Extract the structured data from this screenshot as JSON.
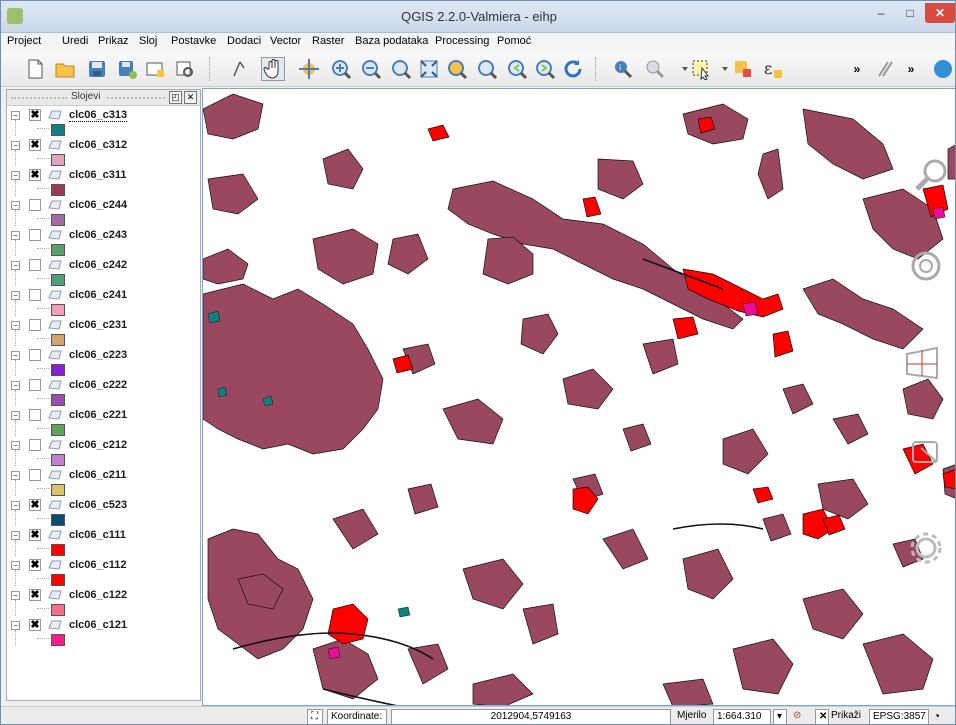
{
  "window": {
    "title": "QGIS 2.2.0-Valmiera - eihp",
    "minimize": "–",
    "maximize": "□",
    "close": "✕"
  },
  "menu": [
    "Project",
    "Uredi",
    "Prikaz",
    "Sloj",
    "Postavke",
    "Dodaci",
    "Vector",
    "Raster",
    "Baza podataka",
    "Processing",
    "Pomoć"
  ],
  "toolbar": {
    "tools": [
      "new-project",
      "open-project",
      "save-project",
      "save-as",
      "new-print-composer",
      "composer-manager",
      "touch-zoom",
      "pan",
      "pan-to-selection",
      "zoom-in",
      "zoom-out",
      "zoom-actual",
      "zoom-full",
      "zoom-layer",
      "zoom-selection",
      "zoom-last",
      "zoom-next",
      "refresh",
      "identify",
      "select-tools",
      "select-feature",
      "deselect",
      "expression-select",
      "more",
      "digitize",
      "more2",
      "globe"
    ],
    "overflow": "»"
  },
  "layers_panel": {
    "title": "Slojevi",
    "float_button": "◰",
    "close_button": "✕",
    "layers": [
      {
        "name": "clc06_c313",
        "checked": true,
        "color": "#0f7f80"
      },
      {
        "name": "clc06_c312",
        "checked": true,
        "color": "#e3a4c3"
      },
      {
        "name": "clc06_c311",
        "checked": true,
        "color": "#9b3a56"
      },
      {
        "name": "clc06_c244",
        "checked": false,
        "color": "#a46aa8"
      },
      {
        "name": "clc06_c243",
        "checked": false,
        "color": "#58a06a"
      },
      {
        "name": "clc06_c242",
        "checked": false,
        "color": "#4e9e7c"
      },
      {
        "name": "clc06_c241",
        "checked": false,
        "color": "#f1a0b7"
      },
      {
        "name": "clc06_c231",
        "checked": false,
        "color": "#d2a36a"
      },
      {
        "name": "clc06_c223",
        "checked": false,
        "color": "#8a1bd8"
      },
      {
        "name": "clc06_c222",
        "checked": false,
        "color": "#9a4fb0"
      },
      {
        "name": "clc06_c221",
        "checked": false,
        "color": "#5da35d"
      },
      {
        "name": "clc06_c212",
        "checked": false,
        "color": "#c27fd1"
      },
      {
        "name": "clc06_c211",
        "checked": false,
        "color": "#d8c46a"
      },
      {
        "name": "clc06_c523",
        "checked": true,
        "color": "#0b4c73"
      },
      {
        "name": "clc06_c111",
        "checked": true,
        "color": "#ff0000"
      },
      {
        "name": "clc06_c112",
        "checked": true,
        "color": "#ff0000"
      },
      {
        "name": "clc06_c122",
        "checked": true,
        "color": "#ff6b8d"
      },
      {
        "name": "clc06_c121",
        "checked": true,
        "color": "#ff1a8c"
      }
    ]
  },
  "map": {
    "fill_main": "#99485f",
    "fill_urban": "#ff0000",
    "fill_water": "#0f7f80",
    "fill_pink": "#e8109a"
  },
  "statusbar": {
    "coord_label": "Koordinate:",
    "coord_value": "2012904,5749163",
    "scale_label": "Mjerilo",
    "scale_value": "1:664.310",
    "render_label": "Prikaži",
    "crs": "EPSG:3857"
  }
}
